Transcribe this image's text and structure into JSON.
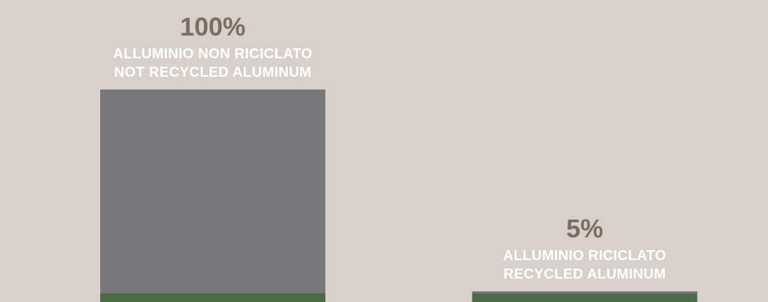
{
  "chart_data": {
    "type": "bar",
    "categories": [
      [
        "ALLUMINIO NON RICICLATO",
        "NOT RECYCLED ALUMINUM"
      ],
      [
        "ALLUMINIO RICICLATO",
        "RECYCLED ALUMINUM"
      ]
    ],
    "values": [
      100,
      5
    ],
    "value_labels": [
      "100%",
      "5%"
    ],
    "ylim": [
      0,
      100
    ],
    "grid": false,
    "colors": {
      "background": "#d8d0ca",
      "bar_main": "#76777b",
      "bar_base": "#4a6b45",
      "value_text": "#7a6e63",
      "category_text": "#ffffff"
    }
  }
}
